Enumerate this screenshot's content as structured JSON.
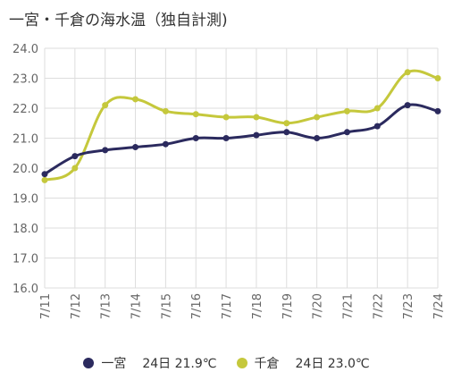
{
  "chart_data": {
    "type": "line",
    "title": "一宮・千倉の海水温（独自計測)",
    "categories": [
      "7/11",
      "7/12",
      "7/13",
      "7/14",
      "7/15",
      "7/16",
      "7/17",
      "7/18",
      "7/19",
      "7/20",
      "7/21",
      "7/22",
      "7/23",
      "7/24"
    ],
    "ylim": [
      16.0,
      24.0
    ],
    "yticks": [
      "16.0",
      "17.0",
      "18.0",
      "19.0",
      "20.0",
      "21.0",
      "22.0",
      "23.0",
      "24.0"
    ],
    "grid": true,
    "legend_position": "bottom",
    "series": [
      {
        "name": "一宮",
        "legend_label": "24日 21.9℃",
        "color": "#2b2a5e",
        "values": [
          19.8,
          20.4,
          20.6,
          20.7,
          20.8,
          21.0,
          21.0,
          21.1,
          21.2,
          21.0,
          21.2,
          21.4,
          22.1,
          21.9
        ]
      },
      {
        "name": "千倉",
        "legend_label": "24日 23.0℃",
        "color": "#c5c83c",
        "values": [
          19.6,
          20.0,
          22.1,
          22.3,
          21.9,
          21.8,
          21.7,
          21.7,
          21.5,
          21.7,
          21.9,
          22.0,
          23.2,
          23.0
        ]
      }
    ]
  }
}
